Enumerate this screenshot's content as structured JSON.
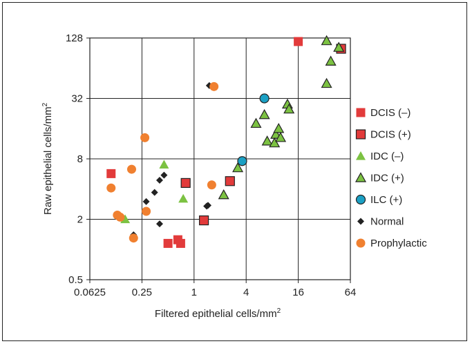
{
  "chart_data": {
    "type": "scatter",
    "xlabel": "Filtered epithelial cells/mm",
    "xlabel_sup": "2",
    "ylabel": "Raw epithelial cells/mm",
    "ylabel_sup": "2",
    "x_scale": "log2",
    "y_scale": "log2",
    "xlim": [
      0.0625,
      64
    ],
    "ylim": [
      0.5,
      128
    ],
    "x_ticks": [
      "0.0625",
      "0.25",
      "1",
      "4",
      "16",
      "64"
    ],
    "y_ticks": [
      "0.5",
      "2",
      "8",
      "32",
      "128"
    ],
    "grid": true,
    "legend_position": "right",
    "series": [
      {
        "name": "DCIS (–)",
        "marker": "square",
        "color": "#e23b3b",
        "outline": "none",
        "points": [
          [
            0.11,
            5.7
          ],
          [
            0.5,
            1.15
          ],
          [
            0.65,
            1.25
          ],
          [
            0.7,
            1.15
          ],
          [
            16,
            118
          ]
        ]
      },
      {
        "name": "DCIS (+)",
        "marker": "square",
        "color": "#e23b3b",
        "outline": "#222222",
        "points": [
          [
            0.8,
            4.6
          ],
          [
            1.3,
            1.95
          ],
          [
            2.6,
            4.8
          ],
          [
            50,
            100
          ]
        ]
      },
      {
        "name": "IDC (–)",
        "marker": "triangle",
        "color": "#7cc242",
        "outline": "none",
        "points": [
          [
            0.16,
            2.0
          ],
          [
            0.45,
            7.0
          ],
          [
            0.75,
            3.2
          ]
        ]
      },
      {
        "name": "IDC (+)",
        "marker": "triangle",
        "color": "#7cc242",
        "outline": "#222222",
        "points": [
          [
            2.2,
            3.5
          ],
          [
            3.2,
            6.5
          ],
          [
            5.2,
            18
          ],
          [
            6.5,
            22
          ],
          [
            8.8,
            14
          ],
          [
            9.5,
            16
          ],
          [
            7.0,
            12
          ],
          [
            8.5,
            11.5
          ],
          [
            10,
            13
          ],
          [
            12,
            28
          ],
          [
            12.5,
            25
          ],
          [
            34,
            120
          ],
          [
            38,
            75
          ],
          [
            34,
            45
          ],
          [
            47,
            103
          ]
        ]
      },
      {
        "name": "ILC (+)",
        "marker": "circle",
        "color": "#1ba0c4",
        "outline": "#222222",
        "points": [
          [
            3.6,
            7.6
          ],
          [
            6.5,
            32
          ]
        ]
      },
      {
        "name": "Normal",
        "marker": "diamond",
        "color": "#222222",
        "outline": "none",
        "points": [
          [
            0.2,
            1.4
          ],
          [
            0.28,
            3.0
          ],
          [
            0.35,
            3.7
          ],
          [
            0.4,
            4.9
          ],
          [
            0.4,
            1.8
          ],
          [
            0.45,
            5.5
          ],
          [
            1.4,
            2.7
          ],
          [
            1.45,
            2.75
          ],
          [
            1.5,
            43
          ]
        ]
      },
      {
        "name": "Prophylactic",
        "marker": "circle",
        "color": "#f08030",
        "outline": "none",
        "points": [
          [
            0.13,
            2.2
          ],
          [
            0.14,
            2.1
          ],
          [
            0.11,
            4.1
          ],
          [
            0.19,
            6.3
          ],
          [
            0.27,
            13
          ],
          [
            0.28,
            2.4
          ],
          [
            0.2,
            1.3
          ],
          [
            1.6,
            4.4
          ],
          [
            1.7,
            42
          ]
        ]
      }
    ]
  }
}
